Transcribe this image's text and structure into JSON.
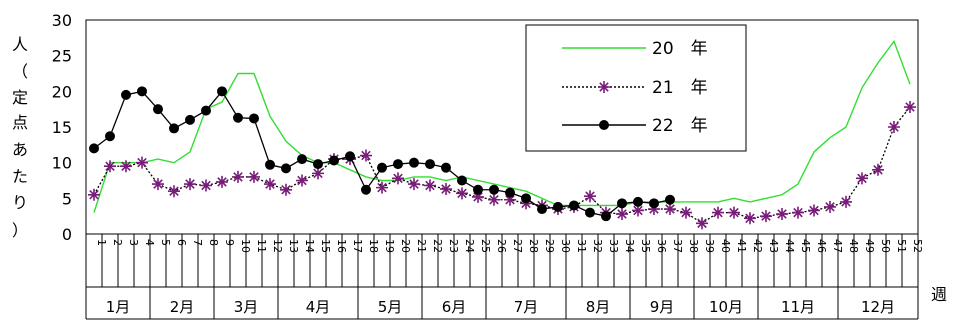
{
  "chart_data": {
    "type": "line",
    "title": "",
    "ylabel": "人（定点あたり）",
    "xlabel": "週",
    "ylim": [
      0,
      30
    ],
    "yticks": [
      0,
      5,
      10,
      15,
      20,
      25,
      30
    ],
    "grid": false,
    "legend_position": "top-right",
    "weeks": [
      "1",
      "2",
      "3",
      "4",
      "5",
      "6",
      "7",
      "8",
      "9",
      "10",
      "11",
      "12",
      "13",
      "14",
      "15",
      "16",
      "17",
      "18",
      "19",
      "20",
      "21",
      "22",
      "23",
      "24",
      "25",
      "26",
      "27",
      "28",
      "29",
      "30",
      "31",
      "32",
      "33",
      "34",
      "35",
      "36",
      "37",
      "38",
      "39",
      "40",
      "41",
      "42",
      "43",
      "44",
      "45",
      "46",
      "47",
      "48",
      "49",
      "50",
      "51",
      "52"
    ],
    "months": [
      {
        "label": "1月",
        "start": 1,
        "end": 4
      },
      {
        "label": "2月",
        "start": 5,
        "end": 8
      },
      {
        "label": "3月",
        "start": 9,
        "end": 12
      },
      {
        "label": "4月",
        "start": 13,
        "end": 17
      },
      {
        "label": "5月",
        "start": 18,
        "end": 21
      },
      {
        "label": "6月",
        "start": 22,
        "end": 25
      },
      {
        "label": "7月",
        "start": 26,
        "end": 30
      },
      {
        "label": "8月",
        "start": 31,
        "end": 34
      },
      {
        "label": "9月",
        "start": 35,
        "end": 38
      },
      {
        "label": "10月",
        "start": 39,
        "end": 42
      },
      {
        "label": "11月",
        "start": 43,
        "end": 47
      },
      {
        "label": "12月",
        "start": 48,
        "end": 52
      }
    ],
    "series": [
      {
        "name": "20　年",
        "color": "#33dd33",
        "style": "solid-line",
        "values": [
          3,
          10,
          10,
          10,
          10.5,
          10,
          11.5,
          17.5,
          18.5,
          22.5,
          22.5,
          16.5,
          13,
          11,
          10,
          10,
          9,
          8,
          7.5,
          7.5,
          8,
          8,
          7.5,
          8,
          7.5,
          7,
          6.5,
          6,
          5,
          4,
          4,
          4,
          4,
          4,
          4.5,
          4.5,
          4.5,
          4.5,
          4.5,
          4.5,
          5,
          4.5,
          5,
          5.5,
          7,
          11.5,
          13.5,
          15,
          20.5,
          24,
          27,
          21
        ]
      },
      {
        "name": "21　年",
        "color": "#7a1c7a",
        "style": "asterisk-dotted",
        "values": [
          5.5,
          9.5,
          9.5,
          10,
          7,
          6,
          7,
          6.8,
          7.3,
          8,
          8,
          7,
          6.2,
          7.5,
          8.5,
          10.5,
          10.5,
          11,
          6.5,
          7.8,
          7,
          6.8,
          6.3,
          5.7,
          5.2,
          4.8,
          4.8,
          4.3,
          4,
          3.5,
          3.8,
          5.3,
          3,
          2.8,
          3.3,
          3.5,
          3.5,
          3,
          1.5,
          3,
          3,
          2.2,
          2.5,
          2.8,
          3,
          3.3,
          3.8,
          4.5,
          7.8,
          9,
          15,
          17.8
        ]
      },
      {
        "name": "22　年",
        "color": "#000000",
        "style": "dot-solid",
        "values": [
          12,
          13.7,
          19.5,
          20,
          17.5,
          14.8,
          16,
          17.3,
          20,
          16.3,
          16.2,
          9.7,
          9.2,
          10.5,
          9.8,
          10.3,
          10.9,
          6.2,
          9.3,
          9.8,
          10,
          9.8,
          9.3,
          7.5,
          6.2,
          6.2,
          5.8,
          5,
          3.5,
          3.8,
          4,
          3,
          2.5,
          4.3,
          4.5,
          4.3,
          4.8,
          null,
          null,
          null,
          null,
          null,
          null,
          null,
          null,
          null,
          null,
          null,
          null,
          null,
          null,
          null
        ]
      }
    ]
  }
}
